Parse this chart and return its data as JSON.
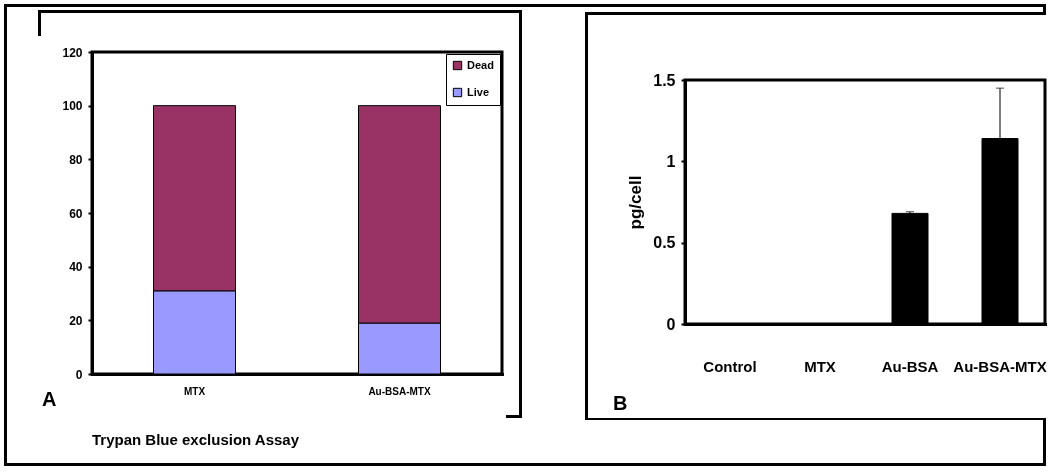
{
  "chart_data": [
    {
      "type": "bar",
      "title": "Trypan Blue exclusion Assay",
      "categories": [
        "MTX",
        "Au-BSA-MTX"
      ],
      "stacked": true,
      "series": [
        {
          "name": "Live",
          "color": "#9999ff",
          "values": [
            31,
            19
          ]
        },
        {
          "name": "Dead",
          "color": "#993366",
          "values": [
            69,
            81
          ]
        }
      ],
      "ylim": [
        0,
        120
      ],
      "yticks": [
        0,
        20,
        40,
        60,
        80,
        100,
        120
      ],
      "grid": false,
      "legend": "top right",
      "annotations": [
        "A"
      ]
    },
    {
      "type": "bar",
      "ylabel": "pg/cell",
      "categories": [
        "Control",
        "MTX",
        "Au-BSA",
        "Au-BSA-MTX"
      ],
      "values": [
        0,
        0,
        0.68,
        1.14
      ],
      "errors": [
        null,
        null,
        0.01,
        0.31
      ],
      "color": "#000000",
      "ylim": [
        0,
        1.5
      ],
      "yticks": [
        0,
        0.5,
        1,
        1.5
      ],
      "grid": false,
      "annotations": [
        "B"
      ]
    }
  ]
}
